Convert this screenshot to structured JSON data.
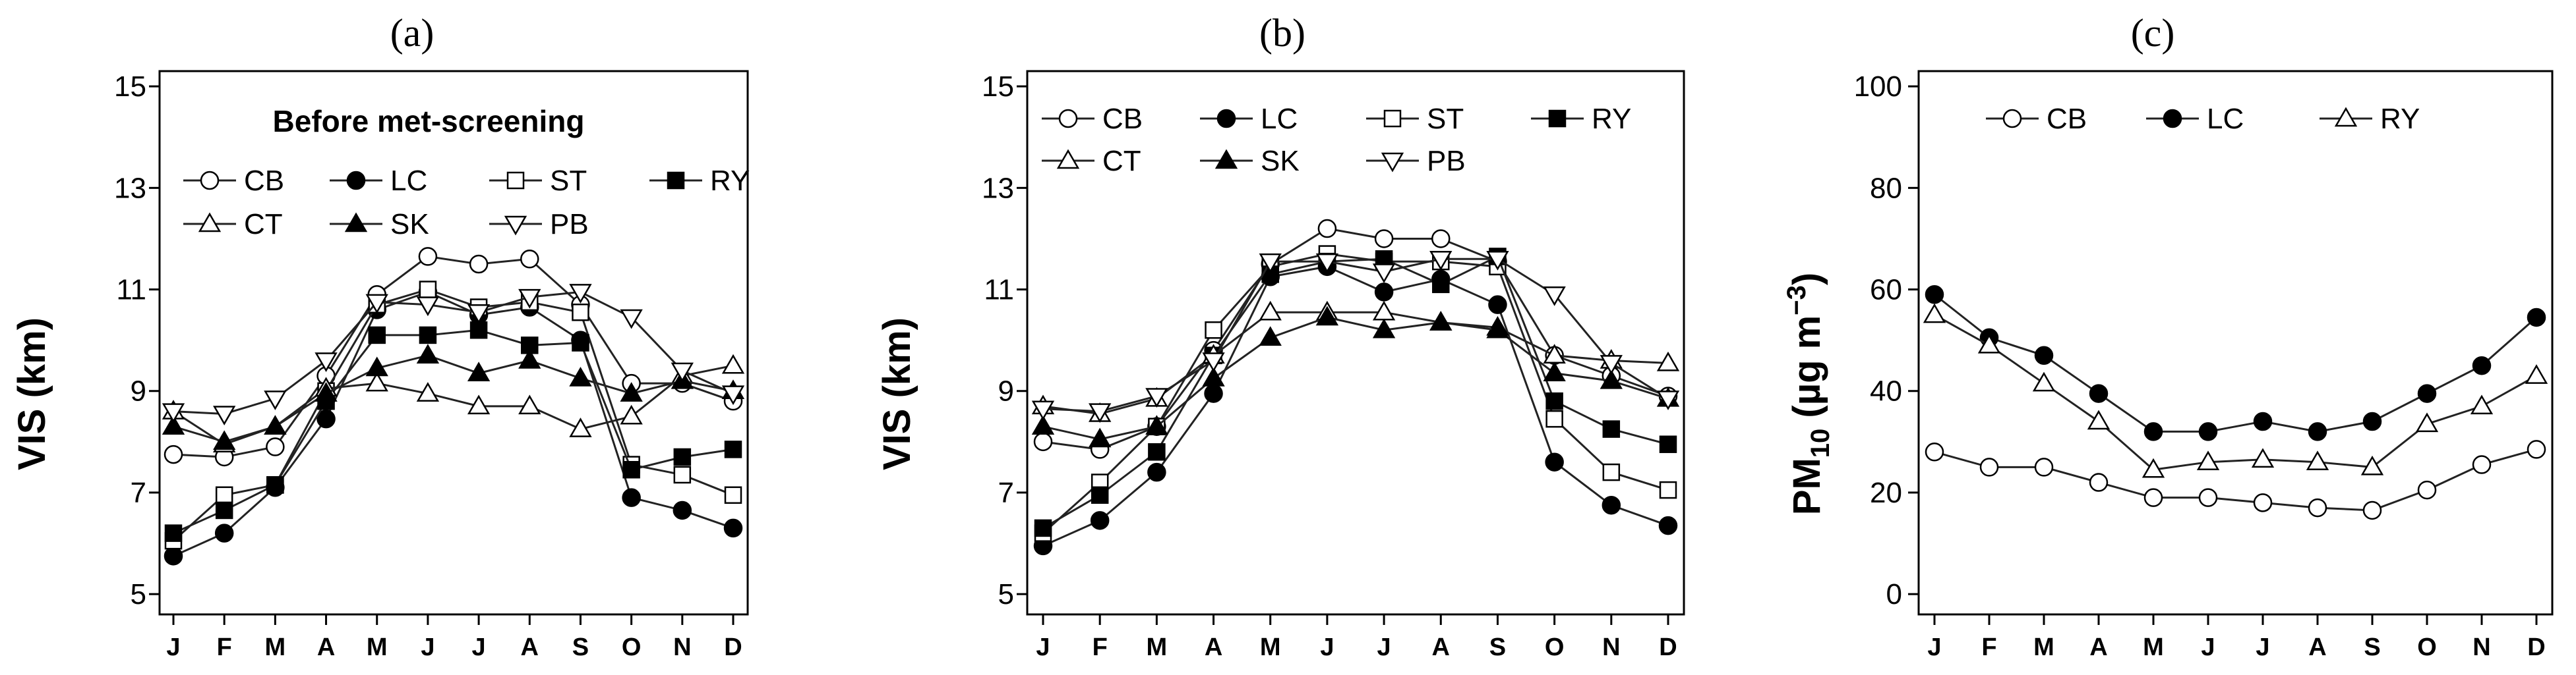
{
  "chart_data": [
    {
      "type": "line",
      "panel_label": "(a)",
      "title": "Before met-screening",
      "xlabel": "",
      "ylabel": "VIS (km)",
      "ylim": [
        4.6,
        15.3
      ],
      "yticks": [
        "5",
        "7",
        "9",
        "11",
        "13",
        "15"
      ],
      "categories": [
        "J",
        "F",
        "M",
        "A",
        "M",
        "J",
        "J",
        "A",
        "S",
        "O",
        "N",
        "D"
      ],
      "legend": [
        "CB",
        "LC",
        "ST",
        "RY",
        "CT",
        "SK",
        "PB"
      ],
      "series": [
        {
          "name": "CB",
          "marker": "circle-open",
          "values": [
            7.75,
            7.7,
            7.9,
            9.3,
            10.9,
            11.65,
            11.5,
            11.6,
            10.7,
            9.15,
            9.15,
            8.8
          ]
        },
        {
          "name": "LC",
          "marker": "circle-filled",
          "values": [
            5.75,
            6.2,
            7.1,
            8.45,
            10.6,
            10.95,
            10.5,
            10.65,
            10.0,
            6.9,
            6.65,
            6.3
          ]
        },
        {
          "name": "ST",
          "marker": "square-open",
          "values": [
            6.05,
            6.95,
            7.15,
            9.0,
            10.7,
            11.0,
            10.65,
            10.75,
            10.55,
            7.55,
            7.35,
            6.95
          ]
        },
        {
          "name": "RY",
          "marker": "square-filled",
          "values": [
            6.2,
            6.65,
            7.15,
            8.8,
            10.1,
            10.1,
            10.2,
            9.9,
            9.95,
            7.45,
            7.7,
            7.85
          ]
        },
        {
          "name": "CT",
          "marker": "triangle-up-open",
          "values": [
            8.6,
            7.95,
            8.3,
            9.05,
            9.15,
            8.95,
            8.7,
            8.7,
            8.25,
            8.5,
            9.3,
            9.5
          ]
        },
        {
          "name": "SK",
          "marker": "triangle-up-filled",
          "values": [
            8.3,
            8.0,
            8.3,
            8.95,
            9.45,
            9.7,
            9.35,
            9.6,
            9.25,
            8.95,
            9.2,
            9.0
          ]
        },
        {
          "name": "PB",
          "marker": "triangle-down-open",
          "values": [
            8.6,
            8.55,
            8.85,
            9.6,
            10.75,
            10.7,
            10.55,
            10.85,
            10.95,
            10.45,
            9.4,
            8.95
          ]
        }
      ]
    },
    {
      "type": "line",
      "panel_label": "(b)",
      "title": "",
      "xlabel": "",
      "ylabel": "VIS (km)",
      "ylim": [
        4.6,
        15.3
      ],
      "yticks": [
        "5",
        "7",
        "9",
        "11",
        "13",
        "15"
      ],
      "categories": [
        "J",
        "F",
        "M",
        "A",
        "M",
        "J",
        "J",
        "A",
        "S",
        "O",
        "N",
        "D"
      ],
      "legend": [
        "CB",
        "LC",
        "ST",
        "RY",
        "CT",
        "SK",
        "PB"
      ],
      "series": [
        {
          "name": "CB",
          "marker": "circle-open",
          "values": [
            8.0,
            7.85,
            8.3,
            9.8,
            11.5,
            12.2,
            12.0,
            12.0,
            11.55,
            9.7,
            9.3,
            8.9
          ]
        },
        {
          "name": "LC",
          "marker": "circle-filled",
          "values": [
            5.95,
            6.45,
            7.4,
            8.95,
            11.25,
            11.45,
            10.95,
            11.2,
            10.7,
            7.6,
            6.75,
            6.35
          ]
        },
        {
          "name": "ST",
          "marker": "square-open",
          "values": [
            6.2,
            7.2,
            8.3,
            10.2,
            11.45,
            11.7,
            11.55,
            11.55,
            11.45,
            8.45,
            7.4,
            7.05
          ]
        },
        {
          "name": "RY",
          "marker": "square-filled",
          "values": [
            6.3,
            6.95,
            7.8,
            9.7,
            11.3,
            11.55,
            11.6,
            11.1,
            11.65,
            8.8,
            8.25,
            7.95
          ]
        },
        {
          "name": "CT",
          "marker": "triangle-up-open",
          "values": [
            8.7,
            8.55,
            8.85,
            9.7,
            10.55,
            10.55,
            10.55,
            10.35,
            10.25,
            9.7,
            9.6,
            9.55
          ]
        },
        {
          "name": "SK",
          "marker": "triangle-up-filled",
          "values": [
            8.3,
            8.05,
            8.3,
            9.25,
            10.05,
            10.45,
            10.2,
            10.35,
            10.2,
            9.35,
            9.2,
            8.85
          ]
        },
        {
          "name": "PB",
          "marker": "triangle-down-open",
          "values": [
            8.65,
            8.6,
            8.9,
            9.6,
            11.55,
            11.55,
            11.35,
            11.6,
            11.6,
            10.9,
            9.55,
            8.85
          ]
        }
      ]
    },
    {
      "type": "line",
      "panel_label": "(c)",
      "title": "",
      "xlabel": "",
      "ylabel": "PM10 (µg m−3)",
      "ylabel_parts": {
        "pm": "PM",
        "pm_sub": "10",
        "unit_open": " (µg m",
        "unit_sup": "−3",
        "unit_close": ")"
      },
      "ylim": [
        -4,
        103
      ],
      "yticks": [
        "0",
        "20",
        "40",
        "60",
        "80",
        "100"
      ],
      "categories": [
        "J",
        "F",
        "M",
        "A",
        "M",
        "J",
        "J",
        "A",
        "S",
        "O",
        "N",
        "D"
      ],
      "legend": [
        "CB",
        "LC",
        "RY"
      ],
      "series": [
        {
          "name": "CB",
          "marker": "circle-open",
          "values": [
            28,
            25,
            25,
            22,
            19,
            19,
            18,
            17,
            16.5,
            20.5,
            25.5,
            28.5
          ]
        },
        {
          "name": "LC",
          "marker": "circle-filled",
          "values": [
            59,
            50.5,
            47,
            39.5,
            32,
            32,
            34,
            32,
            34,
            39.5,
            45,
            54.5
          ]
        },
        {
          "name": "RY",
          "marker": "triangle-up-open",
          "values": [
            55,
            49,
            41.5,
            34,
            24.5,
            26,
            26.5,
            26,
            25,
            33.5,
            37,
            43
          ]
        }
      ]
    }
  ]
}
